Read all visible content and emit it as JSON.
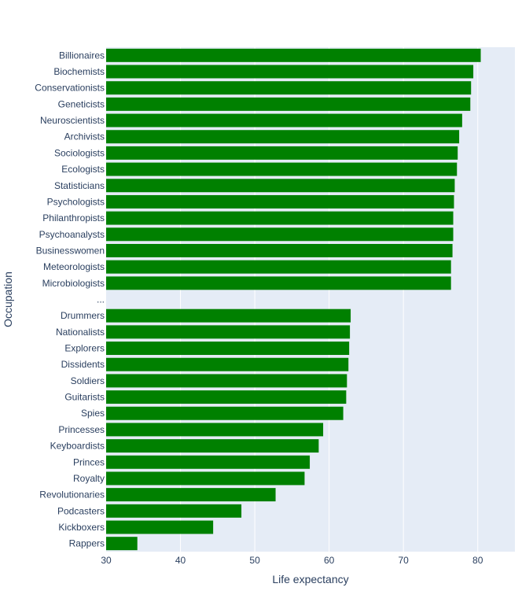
{
  "chart_data": {
    "type": "bar",
    "orientation": "horizontal",
    "title": "",
    "xlabel": "Life expectancy",
    "ylabel": "Occupation",
    "xlim": [
      30,
      85
    ],
    "x_ticks": [
      30,
      40,
      50,
      60,
      70,
      80
    ],
    "grid": true,
    "legend": "none",
    "categories": [
      "Billionaires",
      "Biochemists",
      "Conservationists",
      "Geneticists",
      "Neuroscientists",
      "Archivists",
      "Sociologists",
      "Ecologists",
      "Statisticians",
      "Psychologists",
      "Philanthropists",
      "Psychoanalysts",
      "Businesswomen",
      "Meteorologists",
      "Microbiologists",
      "...",
      "Drummers",
      "Nationalists",
      "Explorers",
      "Dissidents",
      "Soldiers",
      "Guitarists",
      "Spies",
      "Princesses",
      "Keyboardists",
      "Princes",
      "Royalty",
      "Revolutionaries",
      "Podcasters",
      "Kickboxers",
      "Rappers"
    ],
    "values": [
      80.4,
      79.4,
      79.1,
      79.0,
      77.9,
      77.5,
      77.3,
      77.2,
      76.9,
      76.8,
      76.7,
      76.7,
      76.6,
      76.4,
      76.4,
      null,
      62.9,
      62.8,
      62.7,
      62.6,
      62.4,
      62.3,
      61.9,
      59.2,
      58.6,
      57.4,
      56.7,
      52.8,
      48.2,
      44.4,
      34.2
    ],
    "colors": {
      "bar": "#008000",
      "plot_background": "#e5ecf6",
      "grid": "#ffffff",
      "text": "#2a3f5f"
    }
  }
}
